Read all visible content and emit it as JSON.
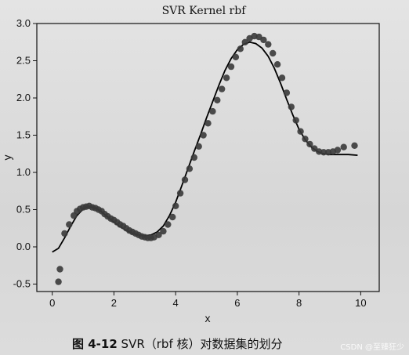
{
  "chart_data": {
    "type": "scatter",
    "title": "SVR Kernel rbf",
    "xlabel": "x",
    "ylabel": "y",
    "xlim": [
      -0.5,
      10.6
    ],
    "ylim": [
      -0.6,
      3.0
    ],
    "xticks": [
      0,
      2,
      4,
      6,
      8,
      10
    ],
    "yticks": [
      -0.5,
      0.0,
      0.5,
      1.0,
      1.5,
      2.0,
      2.5,
      3.0
    ],
    "ytick_labels": [
      "-0.5",
      "0.0",
      "0.5",
      "1.0",
      "1.5",
      "2.0",
      "2.5",
      "3.0"
    ],
    "grid": false,
    "series": [
      {
        "kind": "points",
        "color": "#3a3a3a",
        "points": [
          [
            0.2,
            -0.47
          ],
          [
            0.25,
            -0.3
          ],
          [
            0.4,
            0.18
          ],
          [
            0.55,
            0.3
          ],
          [
            0.7,
            0.42
          ],
          [
            0.8,
            0.48
          ],
          [
            0.9,
            0.51
          ],
          [
            1.0,
            0.53
          ],
          [
            1.1,
            0.54
          ],
          [
            1.2,
            0.55
          ],
          [
            1.3,
            0.53
          ],
          [
            1.4,
            0.52
          ],
          [
            1.5,
            0.5
          ],
          [
            1.6,
            0.48
          ],
          [
            1.7,
            0.44
          ],
          [
            1.8,
            0.41
          ],
          [
            1.9,
            0.38
          ],
          [
            2.0,
            0.36
          ],
          [
            2.1,
            0.33
          ],
          [
            2.2,
            0.3
          ],
          [
            2.3,
            0.28
          ],
          [
            2.4,
            0.25
          ],
          [
            2.5,
            0.22
          ],
          [
            2.6,
            0.2
          ],
          [
            2.7,
            0.18
          ],
          [
            2.8,
            0.16
          ],
          [
            2.9,
            0.14
          ],
          [
            3.0,
            0.13
          ],
          [
            3.1,
            0.12
          ],
          [
            3.2,
            0.12
          ],
          [
            3.3,
            0.13
          ],
          [
            3.45,
            0.16
          ],
          [
            3.6,
            0.21
          ],
          [
            3.75,
            0.3
          ],
          [
            3.9,
            0.4
          ],
          [
            4.0,
            0.55
          ],
          [
            4.15,
            0.72
          ],
          [
            4.3,
            0.9
          ],
          [
            4.45,
            1.05
          ],
          [
            4.6,
            1.2
          ],
          [
            4.75,
            1.35
          ],
          [
            4.9,
            1.5
          ],
          [
            5.05,
            1.66
          ],
          [
            5.2,
            1.82
          ],
          [
            5.35,
            1.97
          ],
          [
            5.5,
            2.12
          ],
          [
            5.65,
            2.27
          ],
          [
            5.8,
            2.42
          ],
          [
            5.95,
            2.55
          ],
          [
            6.1,
            2.66
          ],
          [
            6.25,
            2.75
          ],
          [
            6.4,
            2.8
          ],
          [
            6.55,
            2.83
          ],
          [
            6.7,
            2.82
          ],
          [
            6.85,
            2.78
          ],
          [
            7.0,
            2.72
          ],
          [
            7.15,
            2.6
          ],
          [
            7.3,
            2.45
          ],
          [
            7.45,
            2.27
          ],
          [
            7.6,
            2.07
          ],
          [
            7.75,
            1.88
          ],
          [
            7.9,
            1.7
          ],
          [
            8.05,
            1.55
          ],
          [
            8.2,
            1.45
          ],
          [
            8.35,
            1.38
          ],
          [
            8.5,
            1.32
          ],
          [
            8.65,
            1.28
          ],
          [
            8.8,
            1.27
          ],
          [
            8.95,
            1.27
          ],
          [
            9.1,
            1.28
          ],
          [
            9.25,
            1.3
          ],
          [
            9.45,
            1.34
          ],
          [
            9.8,
            1.36
          ]
        ]
      },
      {
        "kind": "line",
        "color": "#000000",
        "points": [
          [
            0.0,
            -0.07
          ],
          [
            0.2,
            -0.02
          ],
          [
            0.4,
            0.12
          ],
          [
            0.6,
            0.28
          ],
          [
            0.8,
            0.42
          ],
          [
            1.0,
            0.51
          ],
          [
            1.2,
            0.54
          ],
          [
            1.4,
            0.52
          ],
          [
            1.6,
            0.47
          ],
          [
            1.8,
            0.4
          ],
          [
            2.0,
            0.33
          ],
          [
            2.2,
            0.27
          ],
          [
            2.4,
            0.22
          ],
          [
            2.6,
            0.18
          ],
          [
            2.8,
            0.16
          ],
          [
            3.0,
            0.15
          ],
          [
            3.2,
            0.16
          ],
          [
            3.4,
            0.2
          ],
          [
            3.6,
            0.28
          ],
          [
            3.8,
            0.42
          ],
          [
            4.0,
            0.6
          ],
          [
            4.2,
            0.82
          ],
          [
            4.4,
            1.05
          ],
          [
            4.6,
            1.28
          ],
          [
            4.8,
            1.5
          ],
          [
            5.0,
            1.73
          ],
          [
            5.2,
            1.95
          ],
          [
            5.4,
            2.17
          ],
          [
            5.6,
            2.37
          ],
          [
            5.8,
            2.53
          ],
          [
            6.0,
            2.65
          ],
          [
            6.2,
            2.72
          ],
          [
            6.4,
            2.75
          ],
          [
            6.6,
            2.73
          ],
          [
            6.8,
            2.67
          ],
          [
            7.0,
            2.56
          ],
          [
            7.2,
            2.4
          ],
          [
            7.4,
            2.2
          ],
          [
            7.6,
            1.98
          ],
          [
            7.8,
            1.77
          ],
          [
            8.0,
            1.58
          ],
          [
            8.2,
            1.44
          ],
          [
            8.4,
            1.34
          ],
          [
            8.6,
            1.28
          ],
          [
            8.8,
            1.25
          ],
          [
            9.0,
            1.24
          ],
          [
            9.2,
            1.24
          ],
          [
            9.4,
            1.24
          ],
          [
            9.6,
            1.24
          ],
          [
            9.9,
            1.23
          ]
        ]
      }
    ]
  },
  "caption": {
    "figure_number": "图 4-12",
    "text": "SVR（rbf 核）对数据集的划分"
  },
  "watermark": "CSDN @至臻狂少"
}
